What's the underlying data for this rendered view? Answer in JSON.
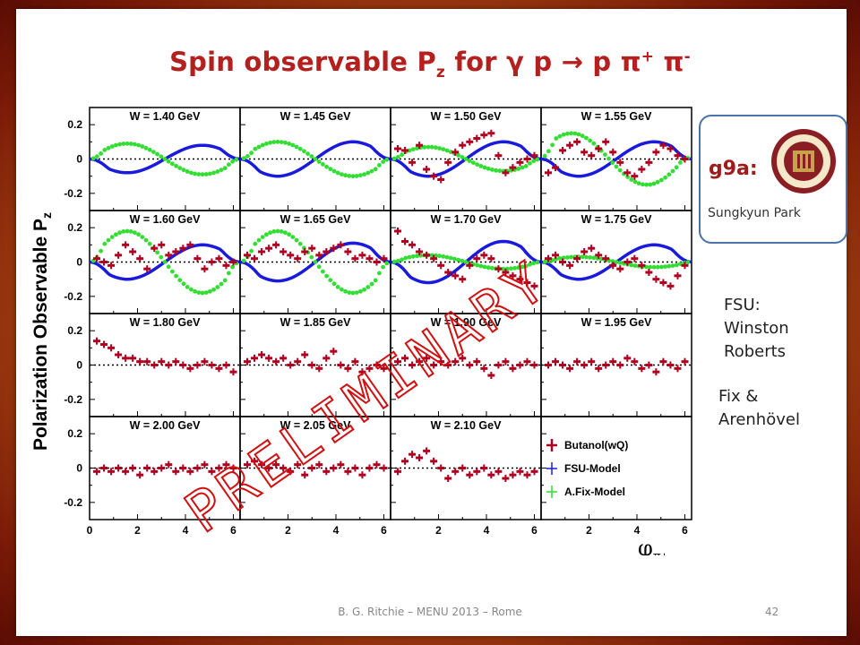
{
  "slide": {
    "title_main": "Spin observable P",
    "title_sub": "z",
    "title_rest": " for γ p → p π",
    "title_sup1": "+",
    "title_mid": " π",
    "title_sup2": "-",
    "footer": "B. G. Ritchie – MENU 2013 – Rome",
    "page_number": "42",
    "badge_title": "g9a:",
    "badge_subtitle": "Sungkyun Park",
    "badge_logo_text": "FLORIDA STATE UNIVERSITY 1851",
    "credit_fsu": [
      "FSU:",
      "Winston",
      "Roberts"
    ],
    "credit_fix": [
      "Fix &",
      "Arenhövel"
    ],
    "watermark": "PRELIMINARY"
  },
  "colors": {
    "title": "#b3201e",
    "data": "#b00020",
    "fsu_model": "#1a1adc",
    "fix_model": "#33dd33",
    "badge_border": "#4a72a8"
  },
  "chart_data": {
    "type": "scatter",
    "ylabel": "Polarization Observable P",
    "ylabel_sub": "z",
    "xlabel": "φ",
    "xlabel_sub": "π+",
    "xlim": [
      0,
      6.28
    ],
    "ylim": [
      -0.3,
      0.3
    ],
    "x_ticks": [
      "0",
      "2",
      "4",
      "6"
    ],
    "y_ticks": [
      "-0.2",
      "0",
      "0.2"
    ],
    "legend": [
      "Butanol(wQ)",
      "FSU-Model",
      "A.Fix-Model"
    ],
    "panels": [
      {
        "label": "W = 1.40 GeV",
        "models": true,
        "fsu_amp": 0.08,
        "fix_amp": 0.09,
        "fix_phase": 0.0,
        "data": []
      },
      {
        "label": "W = 1.45 GeV",
        "models": true,
        "fsu_amp": 0.1,
        "fix_amp": 0.1,
        "fix_phase": 0.0,
        "data": []
      },
      {
        "label": "W = 1.50 GeV",
        "models": true,
        "fsu_amp": 0.1,
        "fix_amp": 0.07,
        "fix_phase": 0.0,
        "data": [
          [
            0.3,
            0.06
          ],
          [
            0.6,
            0.05
          ],
          [
            0.9,
            -0.02
          ],
          [
            1.2,
            0.08
          ],
          [
            1.5,
            -0.06
          ],
          [
            1.8,
            -0.1
          ],
          [
            2.1,
            -0.12
          ],
          [
            2.4,
            -0.02
          ],
          [
            2.7,
            0.04
          ],
          [
            3.0,
            0.08
          ],
          [
            3.3,
            0.1
          ],
          [
            3.6,
            0.12
          ],
          [
            3.9,
            0.14
          ],
          [
            4.2,
            0.15
          ],
          [
            4.5,
            0.02
          ],
          [
            4.8,
            -0.08
          ],
          [
            5.1,
            -0.05
          ],
          [
            5.4,
            -0.02
          ],
          [
            5.7,
            0.0
          ],
          [
            6.0,
            0.02
          ]
        ]
      },
      {
        "label": "W = 1.55 GeV",
        "models": true,
        "fsu_amp": 0.1,
        "fix_amp": 0.15,
        "fix_phase": 0.3,
        "data": [
          [
            0.3,
            -0.08
          ],
          [
            0.6,
            -0.05
          ],
          [
            0.9,
            0.05
          ],
          [
            1.2,
            0.08
          ],
          [
            1.5,
            0.1
          ],
          [
            1.8,
            0.04
          ],
          [
            2.1,
            0.02
          ],
          [
            2.4,
            0.06
          ],
          [
            2.7,
            0.1
          ],
          [
            3.0,
            0.04
          ],
          [
            3.3,
            -0.02
          ],
          [
            3.6,
            -0.08
          ],
          [
            3.9,
            -0.1
          ],
          [
            4.2,
            -0.06
          ],
          [
            4.5,
            -0.02
          ],
          [
            4.8,
            0.04
          ],
          [
            5.1,
            0.08
          ],
          [
            5.4,
            0.06
          ],
          [
            5.7,
            0.02
          ],
          [
            6.0,
            0.0
          ]
        ]
      },
      {
        "label": "W = 1.60 GeV",
        "models": true,
        "fsu_amp": 0.1,
        "fix_amp": 0.18,
        "fix_phase": 0.0,
        "data": [
          [
            0.3,
            0.02
          ],
          [
            0.6,
            0.0
          ],
          [
            0.9,
            -0.02
          ],
          [
            1.2,
            0.04
          ],
          [
            1.5,
            0.1
          ],
          [
            1.8,
            0.06
          ],
          [
            2.1,
            0.02
          ],
          [
            2.4,
            -0.04
          ],
          [
            2.7,
            0.08
          ],
          [
            3.0,
            0.1
          ],
          [
            3.3,
            0.04
          ],
          [
            3.6,
            0.06
          ],
          [
            3.9,
            0.08
          ],
          [
            4.2,
            0.1
          ],
          [
            4.5,
            0.02
          ],
          [
            4.8,
            -0.04
          ],
          [
            5.1,
            0.0
          ],
          [
            5.4,
            0.02
          ],
          [
            5.7,
            -0.02
          ],
          [
            6.0,
            0.0
          ]
        ]
      },
      {
        "label": "W = 1.65 GeV",
        "models": true,
        "fsu_amp": 0.11,
        "fix_amp": 0.18,
        "fix_phase": 0.0,
        "data": [
          [
            0.3,
            0.04
          ],
          [
            0.6,
            0.02
          ],
          [
            0.9,
            0.06
          ],
          [
            1.2,
            0.08
          ],
          [
            1.5,
            0.1
          ],
          [
            1.8,
            0.06
          ],
          [
            2.1,
            0.04
          ],
          [
            2.4,
            0.02
          ],
          [
            2.7,
            0.06
          ],
          [
            3.0,
            0.08
          ],
          [
            3.3,
            0.04
          ],
          [
            3.6,
            0.06
          ],
          [
            3.9,
            0.08
          ],
          [
            4.2,
            0.1
          ],
          [
            4.5,
            0.06
          ],
          [
            4.8,
            0.02
          ],
          [
            5.1,
            0.04
          ],
          [
            5.4,
            0.02
          ],
          [
            5.7,
            0.0
          ],
          [
            6.0,
            0.02
          ]
        ]
      },
      {
        "label": "W = 1.70 GeV",
        "models": true,
        "fsu_amp": 0.12,
        "fix_amp": 0.04,
        "fix_phase": 0.0,
        "data": [
          [
            0.3,
            0.18
          ],
          [
            0.6,
            0.12
          ],
          [
            0.9,
            0.1
          ],
          [
            1.2,
            0.06
          ],
          [
            1.5,
            0.04
          ],
          [
            1.8,
            0.02
          ],
          [
            2.1,
            -0.02
          ],
          [
            2.4,
            -0.06
          ],
          [
            2.7,
            -0.08
          ],
          [
            3.0,
            -0.1
          ],
          [
            3.3,
            -0.02
          ],
          [
            3.6,
            0.02
          ],
          [
            3.9,
            0.04
          ],
          [
            4.2,
            0.02
          ],
          [
            4.5,
            -0.04
          ],
          [
            4.8,
            -0.06
          ],
          [
            5.1,
            -0.08
          ],
          [
            5.4,
            -0.1
          ],
          [
            5.7,
            -0.12
          ],
          [
            6.0,
            -0.14
          ]
        ]
      },
      {
        "label": "W = 1.75 GeV",
        "models": true,
        "fsu_amp": 0.1,
        "fix_amp": 0.03,
        "fix_phase": 0.0,
        "data": [
          [
            0.3,
            0.02
          ],
          [
            0.6,
            0.04
          ],
          [
            0.9,
            0.0
          ],
          [
            1.2,
            -0.02
          ],
          [
            1.5,
            0.02
          ],
          [
            1.8,
            0.06
          ],
          [
            2.1,
            0.08
          ],
          [
            2.4,
            0.04
          ],
          [
            2.7,
            0.02
          ],
          [
            3.0,
            -0.02
          ],
          [
            3.3,
            -0.04
          ],
          [
            3.6,
            0.0
          ],
          [
            3.9,
            0.02
          ],
          [
            4.2,
            -0.02
          ],
          [
            4.5,
            -0.06
          ],
          [
            4.8,
            -0.1
          ],
          [
            5.1,
            -0.12
          ],
          [
            5.4,
            -0.14
          ],
          [
            5.7,
            -0.08
          ],
          [
            6.0,
            -0.02
          ]
        ]
      },
      {
        "label": "W = 1.80 GeV",
        "models": false,
        "data": [
          [
            0.3,
            0.14
          ],
          [
            0.6,
            0.12
          ],
          [
            0.9,
            0.1
          ],
          [
            1.2,
            0.06
          ],
          [
            1.5,
            0.04
          ],
          [
            1.8,
            0.04
          ],
          [
            2.1,
            0.02
          ],
          [
            2.4,
            0.02
          ],
          [
            2.7,
            0.0
          ],
          [
            3.0,
            0.02
          ],
          [
            3.3,
            0.0
          ],
          [
            3.6,
            0.02
          ],
          [
            3.9,
            0.0
          ],
          [
            4.2,
            -0.02
          ],
          [
            4.5,
            0.0
          ],
          [
            4.8,
            0.02
          ],
          [
            5.1,
            0.0
          ],
          [
            5.4,
            -0.02
          ],
          [
            5.7,
            0.0
          ],
          [
            6.0,
            -0.04
          ]
        ]
      },
      {
        "label": "W = 1.85 GeV",
        "models": false,
        "data": [
          [
            0.3,
            0.02
          ],
          [
            0.6,
            0.04
          ],
          [
            0.9,
            0.06
          ],
          [
            1.2,
            0.04
          ],
          [
            1.5,
            0.02
          ],
          [
            1.8,
            0.04
          ],
          [
            2.1,
            0.0
          ],
          [
            2.4,
            0.02
          ],
          [
            2.7,
            0.06
          ],
          [
            3.0,
            0.0
          ],
          [
            3.3,
            -0.02
          ],
          [
            3.6,
            0.04
          ],
          [
            3.9,
            0.08
          ],
          [
            4.2,
            0.0
          ],
          [
            4.5,
            -0.02
          ],
          [
            4.8,
            0.02
          ],
          [
            5.1,
            -0.04
          ],
          [
            5.4,
            -0.02
          ],
          [
            5.7,
            0.0
          ],
          [
            6.0,
            -0.02
          ]
        ]
      },
      {
        "label": "W = 1.90 GeV",
        "models": false,
        "data": [
          [
            0.3,
            0.02
          ],
          [
            0.6,
            0.04
          ],
          [
            0.9,
            0.0
          ],
          [
            1.2,
            0.02
          ],
          [
            1.5,
            0.04
          ],
          [
            1.8,
            0.0
          ],
          [
            2.1,
            0.02
          ],
          [
            2.4,
            0.0
          ],
          [
            2.7,
            0.02
          ],
          [
            3.0,
            0.04
          ],
          [
            3.3,
            0.0
          ],
          [
            3.6,
            0.02
          ],
          [
            3.9,
            -0.02
          ],
          [
            4.2,
            -0.06
          ],
          [
            4.5,
            0.0
          ],
          [
            4.8,
            0.02
          ],
          [
            5.1,
            -0.02
          ],
          [
            5.4,
            0.0
          ],
          [
            5.7,
            0.02
          ],
          [
            6.0,
            0.0
          ]
        ]
      },
      {
        "label": "W = 1.95 GeV",
        "models": false,
        "data": [
          [
            0.3,
            0.0
          ],
          [
            0.6,
            0.02
          ],
          [
            0.9,
            0.0
          ],
          [
            1.2,
            -0.02
          ],
          [
            1.5,
            0.02
          ],
          [
            1.8,
            0.0
          ],
          [
            2.1,
            0.02
          ],
          [
            2.4,
            -0.02
          ],
          [
            2.7,
            0.0
          ],
          [
            3.0,
            0.02
          ],
          [
            3.3,
            0.0
          ],
          [
            3.6,
            0.04
          ],
          [
            3.9,
            0.02
          ],
          [
            4.2,
            -0.02
          ],
          [
            4.5,
            0.0
          ],
          [
            4.8,
            -0.04
          ],
          [
            5.1,
            0.02
          ],
          [
            5.4,
            0.0
          ],
          [
            5.7,
            -0.02
          ],
          [
            6.0,
            0.02
          ]
        ]
      },
      {
        "label": "W = 2.00 GeV",
        "models": false,
        "data": [
          [
            0.3,
            -0.02
          ],
          [
            0.6,
            0.0
          ],
          [
            0.9,
            -0.02
          ],
          [
            1.2,
            0.0
          ],
          [
            1.5,
            -0.02
          ],
          [
            1.8,
            0.0
          ],
          [
            2.1,
            -0.04
          ],
          [
            2.4,
            0.0
          ],
          [
            2.7,
            -0.02
          ],
          [
            3.0,
            0.0
          ],
          [
            3.3,
            0.02
          ],
          [
            3.6,
            -0.02
          ],
          [
            3.9,
            0.0
          ],
          [
            4.2,
            -0.02
          ],
          [
            4.5,
            0.0
          ],
          [
            4.8,
            0.02
          ],
          [
            5.1,
            -0.02
          ],
          [
            5.4,
            0.0
          ],
          [
            5.7,
            0.02
          ],
          [
            6.0,
            0.0
          ]
        ]
      },
      {
        "label": "W = 2.05 GeV",
        "models": false,
        "data": [
          [
            0.3,
            0.02
          ],
          [
            0.6,
            0.04
          ],
          [
            0.9,
            0.02
          ],
          [
            1.2,
            0.0
          ],
          [
            1.5,
            0.02
          ],
          [
            1.8,
            0.0
          ],
          [
            2.1,
            -0.02
          ],
          [
            2.4,
            0.02
          ],
          [
            2.7,
            -0.04
          ],
          [
            3.0,
            0.0
          ],
          [
            3.3,
            0.02
          ],
          [
            3.6,
            -0.02
          ],
          [
            3.9,
            0.0
          ],
          [
            4.2,
            0.02
          ],
          [
            4.5,
            -0.02
          ],
          [
            4.8,
            0.0
          ],
          [
            5.1,
            -0.04
          ],
          [
            5.4,
            0.0
          ],
          [
            5.7,
            0.02
          ],
          [
            6.0,
            0.0
          ]
        ]
      },
      {
        "label": "W = 2.10 GeV",
        "models": false,
        "data": [
          [
            0.3,
            -0.02
          ],
          [
            0.6,
            0.04
          ],
          [
            0.9,
            0.08
          ],
          [
            1.2,
            0.06
          ],
          [
            1.5,
            0.1
          ],
          [
            1.8,
            0.04
          ],
          [
            2.1,
            0.0
          ],
          [
            2.4,
            -0.06
          ],
          [
            2.7,
            -0.02
          ],
          [
            3.0,
            0.0
          ],
          [
            3.3,
            -0.04
          ],
          [
            3.6,
            -0.02
          ],
          [
            3.9,
            0.0
          ],
          [
            4.2,
            -0.04
          ],
          [
            4.5,
            -0.02
          ],
          [
            4.8,
            -0.06
          ],
          [
            5.1,
            -0.04
          ],
          [
            5.4,
            -0.02
          ],
          [
            5.7,
            -0.04
          ],
          [
            6.0,
            -0.02
          ]
        ]
      },
      {
        "label": "",
        "models": false,
        "legend": true,
        "data": []
      }
    ]
  }
}
